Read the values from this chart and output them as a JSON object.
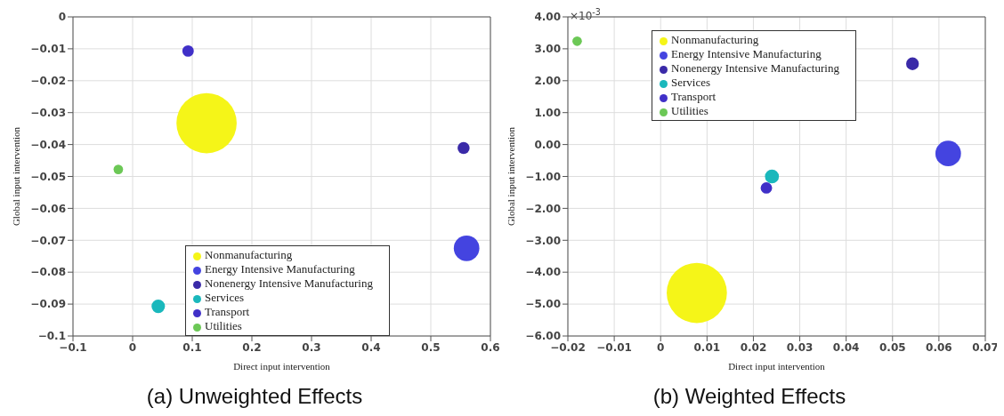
{
  "chart_data": [
    {
      "type": "bubble",
      "title": "(a) Unweighted Effects",
      "xlabel": "Direct input intervention",
      "ylabel": "Global input intervention",
      "xlim": [
        -0.1,
        0.6
      ],
      "ylim": [
        -0.1,
        0
      ],
      "xticks": [
        {
          "value": -0.1,
          "label": "−0.1"
        },
        0,
        0.1,
        0.2,
        0.3,
        0.4,
        0.5,
        0.6
      ],
      "yticks": [
        0,
        {
          "value": -0.01,
          "label": "−0.01"
        },
        {
          "value": -0.02,
          "label": "−0.02"
        },
        {
          "value": -0.03,
          "label": "−0.03"
        },
        {
          "value": -0.04,
          "label": "−0.04"
        },
        {
          "value": -0.05,
          "label": "−0.05"
        },
        {
          "value": -0.06,
          "label": "−0.06"
        },
        {
          "value": -0.07,
          "label": "−0.07"
        },
        {
          "value": -0.08,
          "label": "−0.08"
        },
        {
          "value": -0.09,
          "label": "−0.09"
        },
        {
          "value": -0.1,
          "label": "−0.1"
        }
      ],
      "grid": true,
      "legend": "bottom",
      "series": [
        {
          "name": "Nonmanufacturing",
          "color": "#f5f518",
          "x": [
            0.124
          ],
          "values": [
            -0.0333
          ],
          "sizes": [
            1
          ]
        },
        {
          "name": "Energy Intensive Manufacturing",
          "color": "#4444e0",
          "x": [
            0.56
          ],
          "values": [
            -0.0725
          ],
          "sizes": [
            0.18
          ]
        },
        {
          "name": "Nonenergy Intensive Manufacturing",
          "color": "#3a2aa8",
          "x": [
            0.555
          ],
          "values": [
            -0.0411
          ],
          "sizes": [
            0.04
          ]
        },
        {
          "name": "Services",
          "color": "#1ab8bc",
          "x": [
            0.043
          ],
          "values": [
            -0.0907
          ],
          "sizes": [
            0.05
          ]
        },
        {
          "name": "Transport",
          "color": "#4030c8",
          "x": [
            0.093
          ],
          "values": [
            -0.0107
          ],
          "sizes": [
            0.036
          ]
        },
        {
          "name": "Utilities",
          "color": "#6cc856",
          "x": [
            -0.024
          ],
          "values": [
            -0.0478
          ],
          "sizes": [
            0.025
          ]
        }
      ]
    },
    {
      "type": "bubble",
      "title": "(b) Weighted Effects",
      "xlabel": "Direct input intervention",
      "ylabel": "Global input intervention",
      "annotations": [
        "×10$^{-3}$"
      ],
      "xlim": [
        -0.02,
        0.07
      ],
      "ylim": [
        -6,
        4
      ],
      "xticks": [
        {
          "value": -0.02,
          "label": "−0.02"
        },
        {
          "value": -0.01,
          "label": "−0.01"
        },
        0,
        0.01,
        0.02,
        0.03,
        0.04,
        0.05,
        0.06,
        0.07
      ],
      "yticks": [
        {
          "value": 4,
          "label": "4.00"
        },
        {
          "value": 3,
          "label": "3.00"
        },
        {
          "value": 2,
          "label": "2.00"
        },
        {
          "value": 1,
          "label": "1.00"
        },
        {
          "value": 0,
          "label": "0.00"
        },
        {
          "value": -1,
          "label": "−1.00"
        },
        {
          "value": -2,
          "label": "−2.00"
        },
        {
          "value": -3,
          "label": "−3.00"
        },
        {
          "value": -4,
          "label": "−4.00"
        },
        {
          "value": -5,
          "label": "−5.00"
        },
        {
          "value": -6,
          "label": "−6.00"
        }
      ],
      "grid": true,
      "legend": "top",
      "series": [
        {
          "name": "Nonmanufacturing",
          "color": "#f5f518",
          "x": [
            0.0078
          ],
          "values": [
            -4.65
          ],
          "sizes": [
            1
          ]
        },
        {
          "name": "Energy Intensive Manufacturing",
          "color": "#4444e0",
          "x": [
            0.062
          ],
          "values": [
            -0.28
          ],
          "sizes": [
            0.18
          ]
        },
        {
          "name": "Nonenergy Intensive Manufacturing",
          "color": "#3a2aa8",
          "x": [
            0.0543
          ],
          "values": [
            2.53
          ],
          "sizes": [
            0.045
          ]
        },
        {
          "name": "Services",
          "color": "#1ab8bc",
          "x": [
            0.024
          ],
          "values": [
            -1.0
          ],
          "sizes": [
            0.054
          ]
        },
        {
          "name": "Transport",
          "color": "#4030c8",
          "x": [
            0.0228
          ],
          "values": [
            -1.36
          ],
          "sizes": [
            0.036
          ]
        },
        {
          "name": "Utilities",
          "color": "#6cc856",
          "x": [
            -0.018
          ],
          "values": [
            3.24
          ],
          "sizes": [
            0.025
          ]
        }
      ]
    }
  ]
}
